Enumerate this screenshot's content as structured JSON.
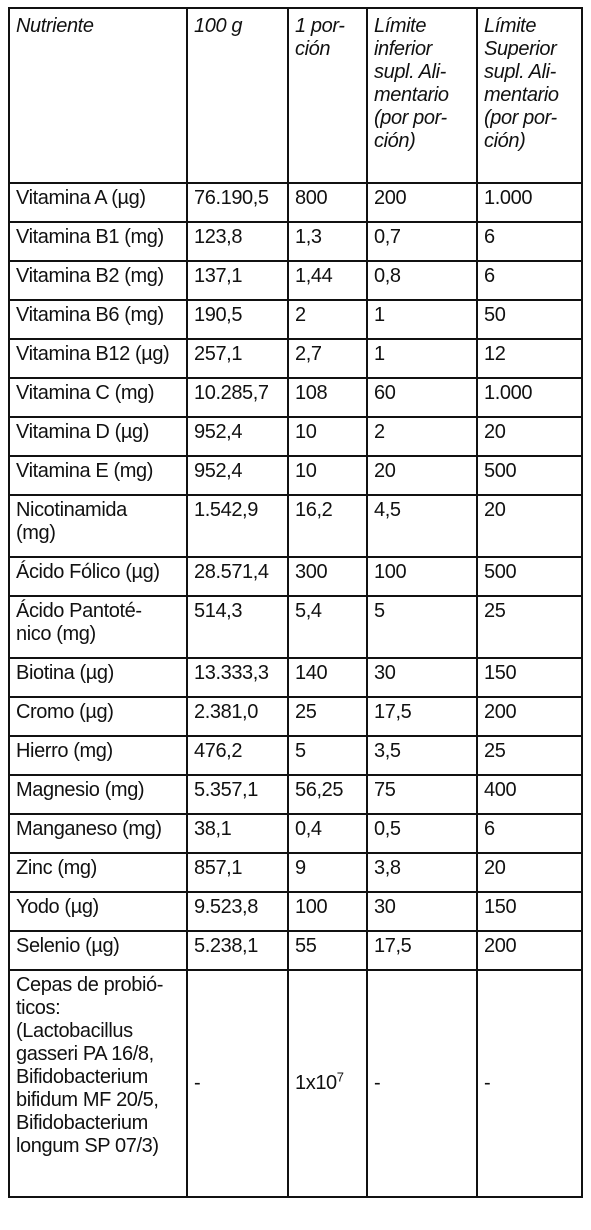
{
  "headers": [
    "Nutriente",
    "100 g",
    "1 por-\nción",
    "Límite\ninferior\nsupl. Ali-\nmentario\n(por por-\nción)",
    "Límite\nSuperior\nsupl. Ali-\nmentario\n(por por-\nción)"
  ],
  "rows": [
    {
      "name": "Vitamina A (µg)",
      "per100": "76.190,5",
      "portion": "800",
      "lower": "200",
      "upper": "1.000"
    },
    {
      "name": "Vitamina B1 (mg)",
      "per100": "123,8",
      "portion": "1,3",
      "lower": "0,7",
      "upper": "6"
    },
    {
      "name": "Vitamina B2 (mg)",
      "per100": "137,1",
      "portion": "1,44",
      "lower": "0,8",
      "upper": "6"
    },
    {
      "name": "Vitamina B6 (mg)",
      "per100": "190,5",
      "portion": "2",
      "lower": "1",
      "upper": "50"
    },
    {
      "name": "Vitamina B12 (µg)",
      "per100": "257,1",
      "portion": "2,7",
      "lower": "1",
      "upper": "12"
    },
    {
      "name": "Vitamina C (mg)",
      "per100": "10.285,7",
      "portion": "108",
      "lower": "60",
      "upper": "1.000"
    },
    {
      "name": "Vitamina D (µg)",
      "per100": "952,4",
      "portion": "10",
      "lower": "2",
      "upper": "20"
    },
    {
      "name": "Vitamina E (mg)",
      "per100": "952,4",
      "portion": "10",
      "lower": "20",
      "upper": "500"
    },
    {
      "name": "Nicotinamida\n(mg)",
      "per100": "1.542,9",
      "portion": "16,2",
      "lower": "4,5",
      "upper": "20"
    },
    {
      "name": "Ácido Fólico (µg)",
      "per100": "28.571,4",
      "portion": "300",
      "lower": "100",
      "upper": "500"
    },
    {
      "name": "Ácido Pantoté-\nnico (mg)",
      "per100": "514,3",
      "portion": "5,4",
      "lower": "5",
      "upper": "25"
    },
    {
      "name": "Biotina (µg)",
      "per100": "13.333,3",
      "portion": "140",
      "lower": "30",
      "upper": "150"
    },
    {
      "name": "Cromo (µg)",
      "per100": "2.381,0",
      "portion": "25",
      "lower": "17,5",
      "upper": "200"
    },
    {
      "name": "Hierro (mg)",
      "per100": "476,2",
      "portion": "5",
      "lower": "3,5",
      "upper": "25"
    },
    {
      "name": "Magnesio (mg)",
      "per100": "5.357,1",
      "portion": "56,25",
      "lower": "75",
      "upper": "400"
    },
    {
      "name": "Manganeso (mg)",
      "per100": "38,1",
      "portion": "0,4",
      "lower": "0,5",
      "upper": "6"
    },
    {
      "name": "Zinc (mg)",
      "per100": "857,1",
      "portion": "9",
      "lower": "3,8",
      "upper": "20"
    },
    {
      "name": "Yodo (µg)",
      "per100": "9.523,8",
      "portion": "100",
      "lower": "30",
      "upper": "150"
    },
    {
      "name": "Selenio (µg)",
      "per100": "5.238,1",
      "portion": "55",
      "lower": "17,5",
      "upper": "200"
    }
  ],
  "probiotics": {
    "name": "Cepas de probió-\nticos:\n(Lactobacillus\ngasseri PA 16/8,\nBifidobacterium\nbifidum MF 20/5,\nBifidobacterium\nlongum SP 07/3)",
    "per100": "-",
    "portion_base": "1x10",
    "portion_exp": "7",
    "lower": "-",
    "upper": "-"
  }
}
